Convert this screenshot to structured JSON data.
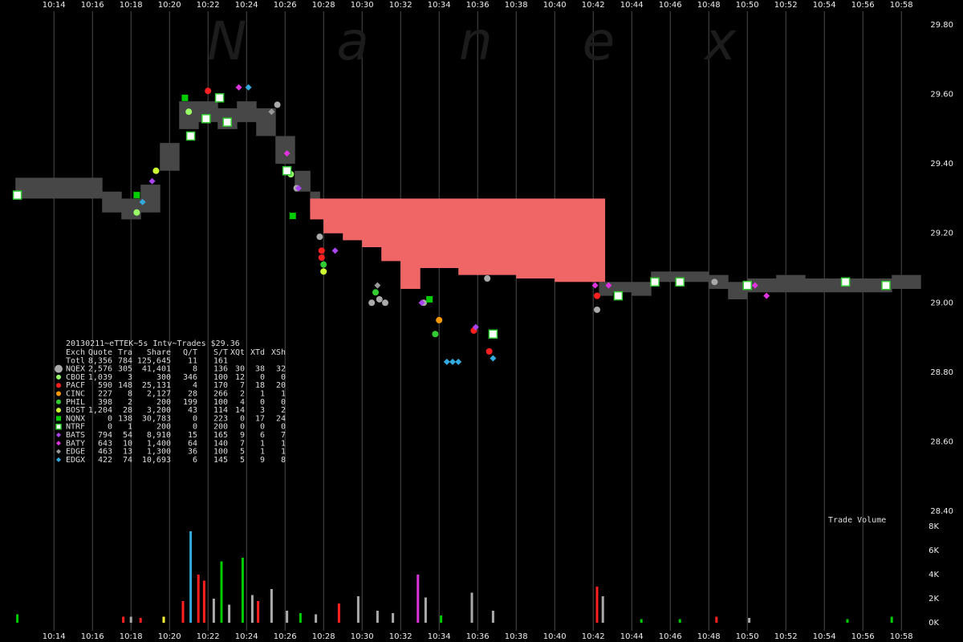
{
  "chart_data": {
    "type": "trades",
    "watermark": "Nanex",
    "volume_label": "Trade Volume",
    "xlim": [
      11.2,
      61.2
    ],
    "xticks": [
      {
        "value": 14,
        "label": "10:14"
      },
      {
        "value": 16,
        "label": "10:16"
      },
      {
        "value": 18,
        "label": "10:18"
      },
      {
        "value": 20,
        "label": "10:20"
      },
      {
        "value": 22,
        "label": "10:22"
      },
      {
        "value": 24,
        "label": "10:24"
      },
      {
        "value": 26,
        "label": "10:26"
      },
      {
        "value": 28,
        "label": "10:28"
      },
      {
        "value": 30,
        "label": "10:30"
      },
      {
        "value": 32,
        "label": "10:32"
      },
      {
        "value": 34,
        "label": "10:34"
      },
      {
        "value": 36,
        "label": "10:36"
      },
      {
        "value": 38,
        "label": "10:38"
      },
      {
        "value": 40,
        "label": "10:40"
      },
      {
        "value": 42,
        "label": "10:42"
      },
      {
        "value": 44,
        "label": "10:44"
      },
      {
        "value": 46,
        "label": "10:46"
      },
      {
        "value": 48,
        "label": "10:48"
      },
      {
        "value": 50,
        "label": "10:50"
      },
      {
        "value": 52,
        "label": "10:52"
      },
      {
        "value": 54,
        "label": "10:54"
      },
      {
        "value": 56,
        "label": "10:56"
      },
      {
        "value": 58,
        "label": "10:58"
      }
    ],
    "ylim": [
      28.4,
      29.8
    ],
    "yticks": [
      {
        "value": 28.4,
        "label": "28.40"
      },
      {
        "value": 28.6,
        "label": "28.60"
      },
      {
        "value": 28.8,
        "label": "28.80"
      },
      {
        "value": 29.0,
        "label": "29.00"
      },
      {
        "value": 29.2,
        "label": "29.20"
      },
      {
        "value": 29.4,
        "label": "29.40"
      },
      {
        "value": 29.6,
        "label": "29.60"
      },
      {
        "value": 29.8,
        "label": "29.80"
      }
    ],
    "y2lim": [
      0,
      8
    ],
    "y2ticks": [
      {
        "value": 0,
        "label": "0K"
      },
      {
        "value": 2,
        "label": "2K"
      },
      {
        "value": 4,
        "label": "4K"
      },
      {
        "value": 6,
        "label": "6K"
      },
      {
        "value": 8,
        "label": "8K"
      }
    ],
    "quote_bands": [
      {
        "color": "#474747",
        "x": [
          12.0,
          15.0,
          16.5,
          17.5,
          18.5,
          19.5,
          20.5,
          21.5,
          22.5,
          23.5,
          24.5,
          25.5,
          26.5,
          27.3
        ],
        "low": [
          29.3,
          29.3,
          29.26,
          29.24,
          29.26,
          29.38,
          29.5,
          29.52,
          29.5,
          29.52,
          29.48,
          29.4,
          29.32,
          29.26
        ],
        "high": [
          29.36,
          29.36,
          29.32,
          29.3,
          29.34,
          29.46,
          29.58,
          29.58,
          29.56,
          29.58,
          29.56,
          29.48,
          29.38,
          29.32
        ]
      },
      {
        "color": "#f06666",
        "x": [
          27.3,
          28.0,
          29.0,
          30.0,
          31.0,
          32.0,
          33.0,
          34.0,
          35.0,
          36.0,
          38.0,
          40.0,
          42.1
        ],
        "low": [
          29.24,
          29.2,
          29.18,
          29.16,
          29.12,
          29.04,
          29.1,
          29.1,
          29.08,
          29.08,
          29.07,
          29.06,
          29.06
        ],
        "high": [
          29.3,
          29.3,
          29.3,
          29.3,
          29.3,
          29.3,
          29.3,
          29.3,
          29.3,
          29.3,
          29.3,
          29.3,
          29.3
        ]
      },
      {
        "color": "#474747",
        "x": [
          42.3,
          43.0,
          44.0,
          45.0,
          46.5,
          48.0,
          49.0,
          50.0,
          51.5,
          53.0,
          55.0,
          57.5,
          58.5
        ],
        "low": [
          29.02,
          29.03,
          29.02,
          29.06,
          29.06,
          29.04,
          29.01,
          29.03,
          29.03,
          29.03,
          29.03,
          29.04,
          29.04
        ],
        "high": [
          29.06,
          29.06,
          29.06,
          29.09,
          29.09,
          29.08,
          29.06,
          29.07,
          29.08,
          29.07,
          29.07,
          29.08,
          29.08
        ]
      }
    ],
    "stats": {
      "title": "20130211~eTTEK~5s Intv~Trades $29.36",
      "columns": [
        "Exch",
        "Quote",
        "Tra",
        "Share",
        "Q/T",
        "S/T",
        "XQt",
        "XTd",
        "XSh"
      ],
      "total": [
        "Totl",
        "8,356",
        "784",
        "125,645",
        "11",
        "161"
      ]
    },
    "series": [
      {
        "name": "NQEX",
        "color": "#aaaaaa",
        "shape": "circle",
        "stats": [
          "2,576",
          "305",
          "41,401",
          "8",
          "136",
          "30",
          "38",
          "32"
        ],
        "x": [
          25.6,
          26.6,
          27.8,
          30.5,
          30.9,
          31.2,
          33.2,
          36.5,
          42.2,
          48.3
        ],
        "values": [
          29.57,
          29.33,
          29.19,
          29.0,
          29.01,
          29.0,
          29.0,
          29.07,
          28.98,
          29.06
        ]
      },
      {
        "name": "CBOE",
        "color": "#99ff66",
        "shape": "circle",
        "stats": [
          "1,039",
          "3",
          "300",
          "346",
          "100",
          "12",
          "0",
          "0"
        ],
        "x": [
          18.3,
          21.0,
          26.3
        ],
        "values": [
          29.26,
          29.55,
          29.37
        ]
      },
      {
        "name": "PACF",
        "color": "#ff2020",
        "shape": "circle",
        "stats": [
          "590",
          "148",
          "25,131",
          "4",
          "170",
          "7",
          "18",
          "20"
        ],
        "x": [
          22.0,
          27.9,
          27.9,
          35.8,
          36.6,
          42.2
        ],
        "values": [
          29.61,
          29.13,
          29.15,
          28.92,
          28.86,
          29.02
        ]
      },
      {
        "name": "CINC",
        "color": "#ff9900",
        "shape": "circle",
        "stats": [
          "227",
          "8",
          "2,127",
          "28",
          "266",
          "2",
          "1",
          "1"
        ],
        "x": [
          34.0
        ],
        "values": [
          28.95
        ]
      },
      {
        "name": "PHIL",
        "color": "#33cc33",
        "shape": "circle",
        "stats": [
          "398",
          "2",
          "200",
          "199",
          "100",
          "4",
          "0",
          "0"
        ],
        "x": [
          28.0,
          30.7,
          33.8
        ],
        "values": [
          29.11,
          29.03,
          28.91
        ]
      },
      {
        "name": "BOST",
        "color": "#ccff33",
        "shape": "circle",
        "stats": [
          "1,204",
          "28",
          "3,200",
          "43",
          "114",
          "14",
          "3",
          "2"
        ],
        "x": [
          19.3,
          28.0
        ],
        "values": [
          29.38,
          29.09
        ]
      },
      {
        "name": "NQNX",
        "color": "#00cc00",
        "shape": "square",
        "stats": [
          "0",
          "138",
          "30,783",
          "0",
          "223",
          "0",
          "17",
          "24"
        ],
        "x": [
          20.8,
          26.4,
          33.5,
          18.3
        ],
        "values": [
          29.59,
          29.25,
          29.01,
          29.31
        ]
      },
      {
        "name": "NTRF",
        "color": "#33cc33",
        "shape": "open-square",
        "stats": [
          "0",
          "1",
          "200",
          "0",
          "200",
          "0",
          "0",
          "0"
        ],
        "x": [
          12.1,
          21.1,
          21.9,
          22.6,
          23.0,
          26.1,
          36.8,
          43.3,
          45.2,
          46.5,
          50.0,
          55.1,
          57.2
        ],
        "values": [
          29.31,
          29.48,
          29.53,
          29.59,
          29.52,
          29.38,
          28.91,
          29.02,
          29.06,
          29.06,
          29.05,
          29.06,
          29.05
        ]
      },
      {
        "name": "BATS",
        "color": "#aa44ee",
        "shape": "diamond",
        "stats": [
          "794",
          "54",
          "8,910",
          "15",
          "165",
          "9",
          "6",
          "7"
        ],
        "x": [
          19.1,
          26.7,
          28.6,
          33.1,
          35.9
        ],
        "values": [
          29.35,
          29.33,
          29.15,
          29.0,
          28.93
        ]
      },
      {
        "name": "BATY",
        "color": "#dd33dd",
        "shape": "diamond",
        "stats": [
          "643",
          "10",
          "1,400",
          "64",
          "140",
          "7",
          "1",
          "1"
        ],
        "x": [
          23.6,
          26.1,
          42.1,
          42.8,
          51.0,
          50.4
        ],
        "values": [
          29.62,
          29.43,
          29.05,
          29.05,
          29.02,
          29.05
        ]
      },
      {
        "name": "EDGE",
        "color": "#999999",
        "shape": "diamond",
        "stats": [
          "463",
          "13",
          "1,300",
          "36",
          "100",
          "5",
          "1",
          "1"
        ],
        "x": [
          25.3,
          30.8
        ],
        "values": [
          29.55,
          29.05
        ]
      },
      {
        "name": "EDGX",
        "color": "#33aadd",
        "shape": "diamond",
        "stats": [
          "422",
          "74",
          "10,693",
          "6",
          "145",
          "5",
          "9",
          "8"
        ],
        "x": [
          24.1,
          18.6,
          34.4,
          34.7,
          35.0,
          36.8
        ],
        "values": [
          29.62,
          29.29,
          28.83,
          28.83,
          28.83,
          28.84
        ]
      }
    ],
    "volume": {
      "x": [
        12.1,
        17.6,
        18.0,
        18.5,
        19.7,
        20.7,
        21.1,
        21.5,
        21.8,
        22.3,
        22.7,
        23.1,
        23.8,
        24.3,
        24.6,
        25.3,
        26.1,
        26.8,
        27.6,
        28.8,
        29.8,
        30.8,
        31.6,
        32.9,
        33.3,
        34.1,
        35.7,
        36.8,
        42.2,
        42.5,
        44.5,
        46.5,
        48.4,
        50.1,
        55.2,
        57.5
      ],
      "values": [
        0.7,
        0.5,
        0.5,
        0.4,
        0.5,
        1.8,
        7.6,
        4.0,
        3.5,
        2.0,
        5.1,
        1.5,
        5.4,
        2.3,
        1.8,
        2.8,
        1.0,
        0.8,
        0.7,
        1.6,
        2.2,
        1.0,
        0.8,
        4.0,
        2.1,
        0.6,
        2.5,
        1.0,
        3.0,
        2.2,
        0.3,
        0.3,
        0.5,
        0.4,
        0.3,
        0.5
      ],
      "colors": [
        "#00cc00",
        "#ff2020",
        "#aaaaaa",
        "#ff2020",
        "#ffff33",
        "#ff2020",
        "#33aadd",
        "#ff2020",
        "#ff2020",
        "#aaaaaa",
        "#00cc00",
        "#aaaaaa",
        "#00cc00",
        "#aaaaaa",
        "#ff2020",
        "#aaaaaa",
        "#aaaaaa",
        "#00cc00",
        "#aaaaaa",
        "#ff2020",
        "#aaaaaa",
        "#aaaaaa",
        "#aaaaaa",
        "#dd33dd",
        "#aaaaaa",
        "#00cc00",
        "#aaaaaa",
        "#aaaaaa",
        "#ff2020",
        "#aaaaaa",
        "#00cc00",
        "#00cc00",
        "#ff2020",
        "#aaaaaa",
        "#00cc00",
        "#00cc00"
      ]
    }
  }
}
